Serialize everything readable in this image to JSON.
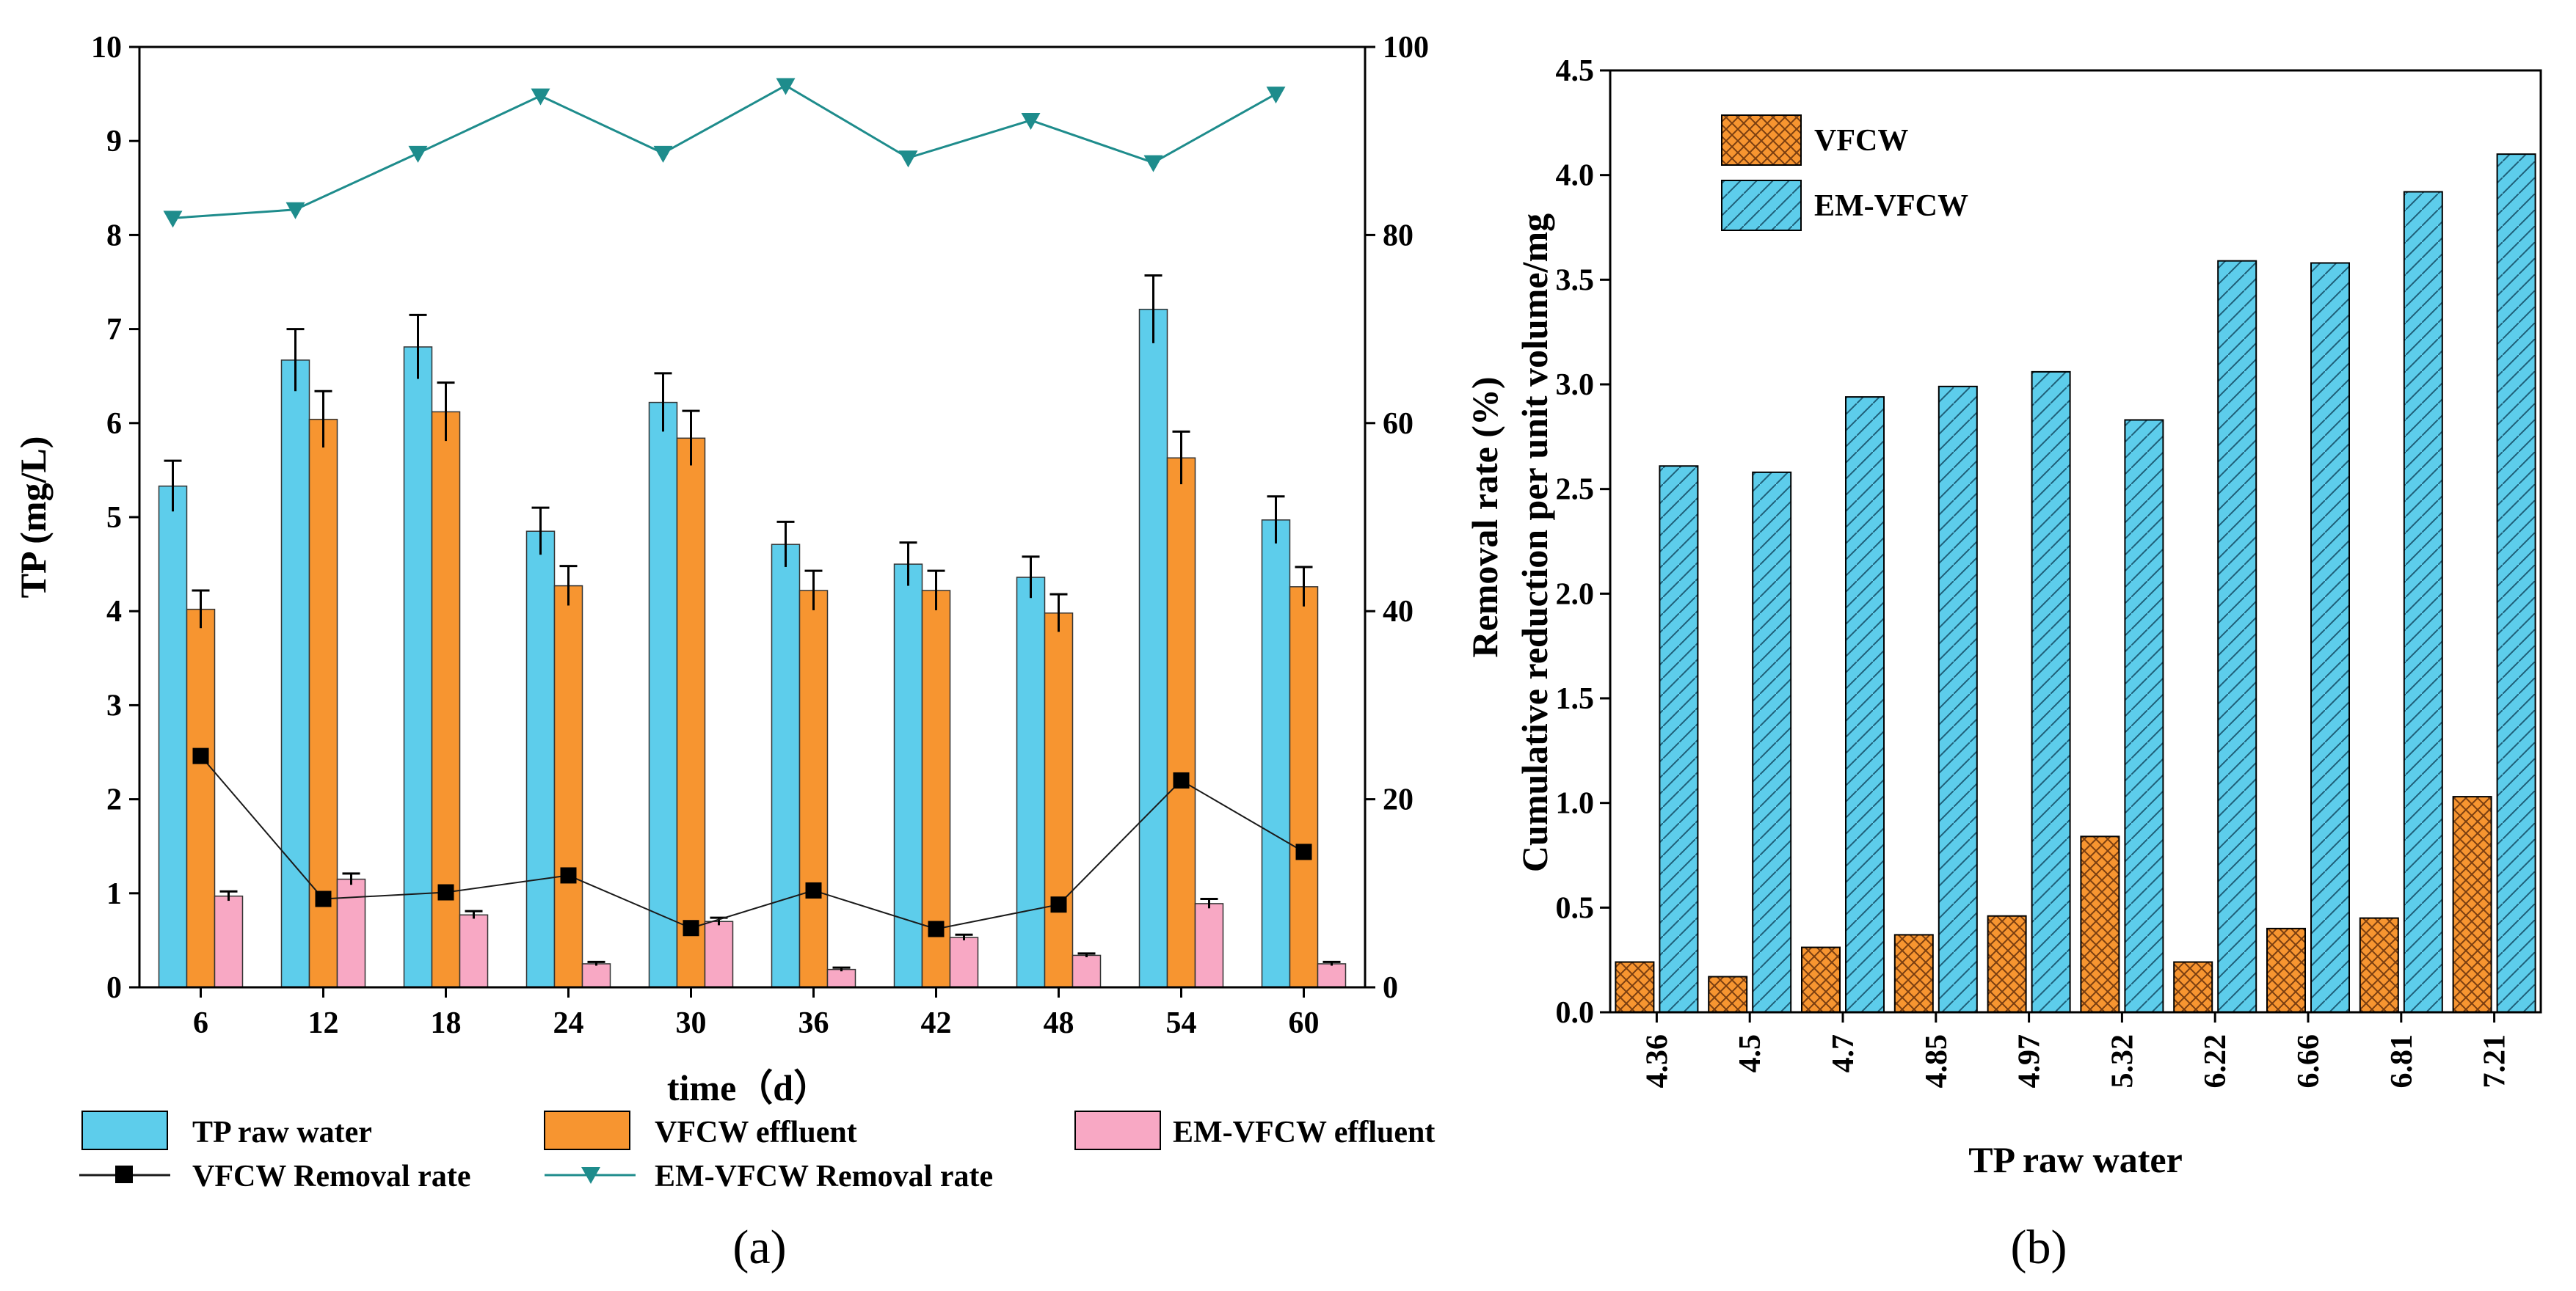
{
  "chart_data": [
    {
      "panel": "(a)",
      "type": "bar+line",
      "xlabel": "time（d）",
      "ylabel": "TP (mg/L)",
      "y2label": "Removal rate (%)",
      "ylim": [
        0,
        10
      ],
      "y2lim": [
        0,
        100
      ],
      "yticks": [
        "0",
        "1",
        "2",
        "3",
        "4",
        "5",
        "6",
        "7",
        "8",
        "9",
        "10"
      ],
      "y2ticks": [
        "0",
        "20",
        "40",
        "60",
        "80",
        "100"
      ],
      "categories": [
        "6",
        "12",
        "18",
        "24",
        "30",
        "36",
        "42",
        "48",
        "54",
        "60"
      ],
      "bar_series": [
        {
          "name": "TP raw water",
          "color": "#5DCDEB",
          "values": [
            5.33,
            6.67,
            6.81,
            4.85,
            6.22,
            4.71,
            4.5,
            4.36,
            7.21,
            4.97
          ],
          "errors": [
            0.27,
            0.33,
            0.34,
            0.25,
            0.31,
            0.24,
            0.23,
            0.22,
            0.36,
            0.25
          ]
        },
        {
          "name": "VFCW effluent",
          "color": "#F79530",
          "values": [
            4.02,
            6.04,
            6.12,
            4.27,
            5.84,
            4.22,
            4.22,
            3.98,
            5.63,
            4.26
          ],
          "errors": [
            0.2,
            0.3,
            0.31,
            0.21,
            0.29,
            0.21,
            0.21,
            0.2,
            0.28,
            0.21
          ]
        },
        {
          "name": "EM-VFCW effluent",
          "color": "#F8A8C4",
          "values": [
            0.97,
            1.15,
            0.77,
            0.25,
            0.7,
            0.19,
            0.53,
            0.34,
            0.89,
            0.25
          ],
          "errors": [
            0.05,
            0.06,
            0.04,
            0.02,
            0.04,
            0.02,
            0.03,
            0.02,
            0.05,
            0.02
          ]
        }
      ],
      "line_series": [
        {
          "name": "VFCW Removal rate",
          "color": "#1a1a1a",
          "marker": "square",
          "values": [
            24.6,
            9.4,
            10.1,
            11.9,
            6.3,
            10.3,
            6.2,
            8.8,
            22.0,
            14.4
          ]
        },
        {
          "name": "EM-VFCW Removal rate",
          "color": "#1E8C8C",
          "marker": "triangle-down",
          "values": [
            81.8,
            82.7,
            88.7,
            94.8,
            88.7,
            95.9,
            88.2,
            92.2,
            87.7,
            95.0
          ]
        }
      ]
    },
    {
      "panel": "(b)",
      "type": "bar",
      "xlabel": "TP raw water",
      "ylabel": "Cumulative reduction per unit volume/mg",
      "ylim": [
        0,
        4.5
      ],
      "yticks": [
        "0.0",
        "0.5",
        "1.0",
        "1.5",
        "2.0",
        "2.5",
        "3.0",
        "3.5",
        "4.0",
        "4.5"
      ],
      "categories": [
        "4.36",
        "4.5",
        "4.7",
        "4.85",
        "4.97",
        "5.32",
        "6.22",
        "6.66",
        "6.81",
        "7.21"
      ],
      "series": [
        {
          "name": "VFCW",
          "color": "#F79530",
          "pattern": "crosshatch",
          "values": [
            0.24,
            0.17,
            0.31,
            0.37,
            0.46,
            0.84,
            0.24,
            0.4,
            0.45,
            1.03
          ]
        },
        {
          "name": "EM-VFCW",
          "color": "#5DCDEB",
          "pattern": "diagonal",
          "values": [
            2.61,
            2.58,
            2.94,
            2.99,
            3.06,
            2.83,
            3.59,
            3.58,
            3.92,
            4.1
          ]
        }
      ],
      "legend_position": "top-left"
    }
  ]
}
